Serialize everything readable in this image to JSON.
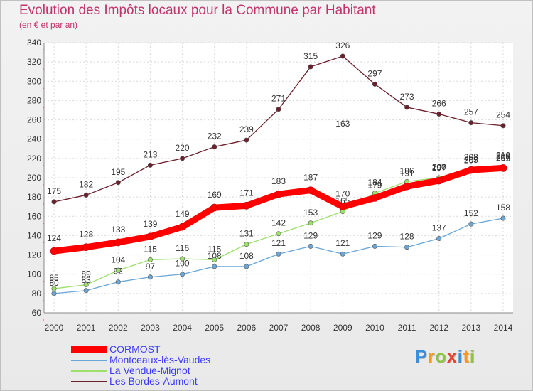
{
  "title": "Evolution des Impôts locaux pour la Commune par Habitant",
  "subtitle": "(en € et par an)",
  "logo": {
    "letters": [
      "P",
      "r",
      "o",
      "x",
      "i",
      "t",
      "i"
    ],
    "colors": [
      "#3b8fd9",
      "#f29b1f",
      "#8cc63f",
      "#e8432f",
      "#3b8fd9",
      "#f29b1f",
      "#8cc63f"
    ]
  },
  "chart_data": {
    "type": "line",
    "x": [
      "2000",
      "2001",
      "2002",
      "2003",
      "2004",
      "2005",
      "2006",
      "2007",
      "2008",
      "2009",
      "2010",
      "2011",
      "2012",
      "2013",
      "2014"
    ],
    "ylim": [
      60,
      340
    ],
    "yticks": [
      60,
      80,
      100,
      120,
      140,
      160,
      180,
      200,
      220,
      240,
      260,
      280,
      300,
      320,
      340
    ],
    "grid": true,
    "legend_position": "bottom-left",
    "series": [
      {
        "name": "Les Bordes-Aumont",
        "color": "#6e1f2c",
        "values": [
          175,
          182,
          195,
          213,
          220,
          232,
          239,
          271,
          315,
          326,
          297,
          273,
          266,
          257,
          254
        ],
        "labels": [
          "175",
          "182",
          "195",
          "213",
          "220",
          "232",
          "239",
          "271",
          "315",
          "326",
          "297",
          "273",
          "266",
          "257",
          "254"
        ]
      },
      {
        "name": "Montceaux-lès-Vaudes",
        "color": "#6aa6d6",
        "values": [
          80,
          83,
          92,
          97,
          100,
          108,
          108,
          121,
          129,
          121,
          129,
          128,
          137,
          152,
          158
        ],
        "labels": [
          "80",
          "83",
          "92",
          "97",
          "100",
          "108",
          "108",
          "121",
          "129",
          "121",
          "129",
          "128",
          "137",
          "152",
          "158"
        ]
      },
      {
        "name": "La Vendue-Mignot",
        "color": "#9be06a",
        "values": [
          85,
          89,
          104,
          115,
          116,
          115,
          131,
          142,
          153,
          165,
          184,
          196,
          200,
          207,
          209
        ],
        "labels": [
          "85",
          "89",
          "104",
          "115",
          "116",
          "115",
          "131",
          "142",
          "153",
          "165",
          "184",
          "196",
          "200",
          "207",
          "209"
        ]
      },
      {
        "name": "CORMOST",
        "color": "#ff0000",
        "values": [
          124,
          128,
          133,
          139,
          149,
          169,
          171,
          183,
          187,
          170,
          179,
          191,
          197,
          208,
          210
        ],
        "labels": [
          "124",
          "128",
          "133",
          "139",
          "149",
          "169",
          "171",
          "183",
          "187",
          "170",
          "179",
          "191",
          "197",
          "208",
          "210"
        ]
      }
    ],
    "extra_labels": [
      "163",
      "205",
      "207",
      "197",
      "209"
    ],
    "legend": [
      "CORMOST",
      "Montceaux-lès-Vaudes",
      "La Vendue-Mignot",
      "Les Bordes-Aumont"
    ]
  }
}
